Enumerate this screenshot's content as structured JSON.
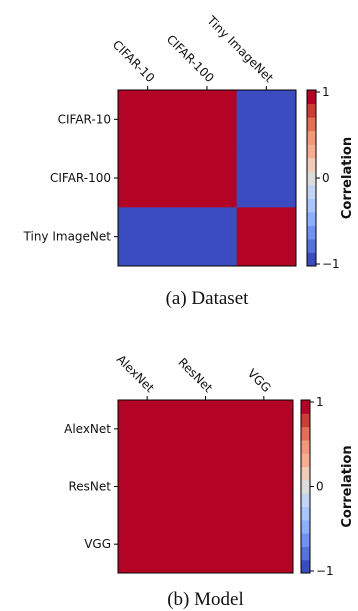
{
  "colors": {
    "positive": "#b40426",
    "negative": "#3b4cc0",
    "colorbar": [
      "#3b4cc0",
      "#5572df",
      "#7093f3",
      "#8db0fe",
      "#aac7fd",
      "#c4d5f3",
      "#dddcdc",
      "#f2cbb7",
      "#f7ad90",
      "#f4987a",
      "#e46e56",
      "#cc3d33",
      "#b40426"
    ]
  },
  "chart_data": [
    {
      "type": "heatmap",
      "caption": "(a) Dataset",
      "categories": [
        "CIFAR-10",
        "CIFAR-100",
        "Tiny ImageNet"
      ],
      "values": [
        [
          1,
          1,
          -1
        ],
        [
          1,
          1,
          -1
        ],
        [
          -1,
          -1,
          1
        ]
      ],
      "colorbar": {
        "label": "Correlation",
        "ticks": [
          "1",
          "0",
          "−1"
        ],
        "range": [
          -1,
          1
        ]
      }
    },
    {
      "type": "heatmap",
      "caption": "(b) Model",
      "categories": [
        "AlexNet",
        "ResNet",
        "VGG"
      ],
      "values": [
        [
          1,
          1,
          1
        ],
        [
          1,
          1,
          1
        ],
        [
          1,
          1,
          1
        ]
      ],
      "colorbar": {
        "label": "Correlation",
        "ticks": [
          "1",
          "0",
          "−1"
        ],
        "range": [
          -1,
          1
        ]
      }
    }
  ]
}
